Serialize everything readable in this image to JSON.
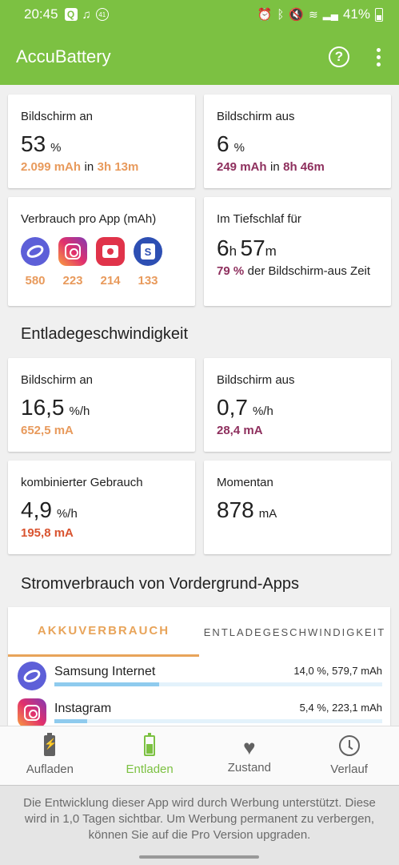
{
  "statusbar": {
    "time": "20:45",
    "notif_q": "Q",
    "notif_badge": "41",
    "battery_percent": "41%",
    "icons": [
      "alarm-icon",
      "bluetooth-icon",
      "mute-icon",
      "wifi-icon",
      "signal-icon",
      "battery-icon"
    ]
  },
  "appbar": {
    "title": "AccuBattery"
  },
  "cards": {
    "screen_on": {
      "label": "Bildschirm an",
      "value": "53",
      "unit": "%",
      "mah": "2.099 mAh",
      "in": "in",
      "time": "3h 13m"
    },
    "screen_off": {
      "label": "Bildschirm aus",
      "value": "6",
      "unit": "%",
      "mah": "249 mAh",
      "in": "in",
      "time": "8h 46m"
    },
    "per_app": {
      "label": "Verbrauch pro App (mAh)",
      "apps": [
        {
          "icon": "samsung-internet-icon",
          "value": "580"
        },
        {
          "icon": "instagram-icon",
          "value": "223"
        },
        {
          "icon": "camera-icon",
          "value": "214"
        },
        {
          "icon": "galaxy-store-icon",
          "value": "133"
        }
      ]
    },
    "deep_sleep": {
      "label": "Im Tiefschlaf für",
      "hours": "6",
      "h": "h",
      "minutes": "57",
      "m": "m",
      "percent": "79 %",
      "desc": "der Bildschirm-aus Zeit"
    }
  },
  "discharge": {
    "title": "Entladegeschwindigkeit",
    "screen_on": {
      "label": "Bildschirm an",
      "value": "16,5",
      "unit": "%/h",
      "ma": "652,5 mA"
    },
    "screen_off": {
      "label": "Bildschirm aus",
      "value": "0,7",
      "unit": "%/h",
      "ma": "28,4 mA"
    },
    "combined": {
      "label": "kombinierter Gebrauch",
      "value": "4,9",
      "unit": "%/h",
      "ma": "195,8 mA"
    },
    "current": {
      "label": "Momentan",
      "value": "878",
      "unit": "mA"
    }
  },
  "foreground": {
    "title": "Stromverbrauch von Vordergrund-Apps",
    "tabs": [
      "AKKUVERBRAUCH",
      "ENTLADEGESCHWINDIGKEIT"
    ],
    "apps": [
      {
        "name": "Samsung Internet",
        "stat": "14,0 %, 579,7 mAh",
        "share": 0.32
      },
      {
        "name": "Instagram",
        "stat": "5,4 %, 223,1 mAh",
        "share": 0.1
      }
    ]
  },
  "bottomnav": {
    "items": [
      {
        "label": "Aufladen",
        "icon": "battery-charging-icon"
      },
      {
        "label": "Entladen",
        "icon": "battery-discharging-icon"
      },
      {
        "label": "Zustand",
        "icon": "heart-icon"
      },
      {
        "label": "Verlauf",
        "icon": "history-icon"
      }
    ],
    "active": "Entladen"
  },
  "ad_banner": {
    "text": "Die Entwicklung dieser App wird durch Werbung unterstützt. Diese wird in 1,0 Tagen sichtbar. Um Werbung permanent zu verbergen, können Sie auf die Pro Version upgraden."
  },
  "colors": {
    "primary": "#7cc142",
    "orange": "#e89a5c",
    "purple": "#8e2f5d",
    "red_orange": "#d9532f",
    "progress": "#8fcbee"
  }
}
